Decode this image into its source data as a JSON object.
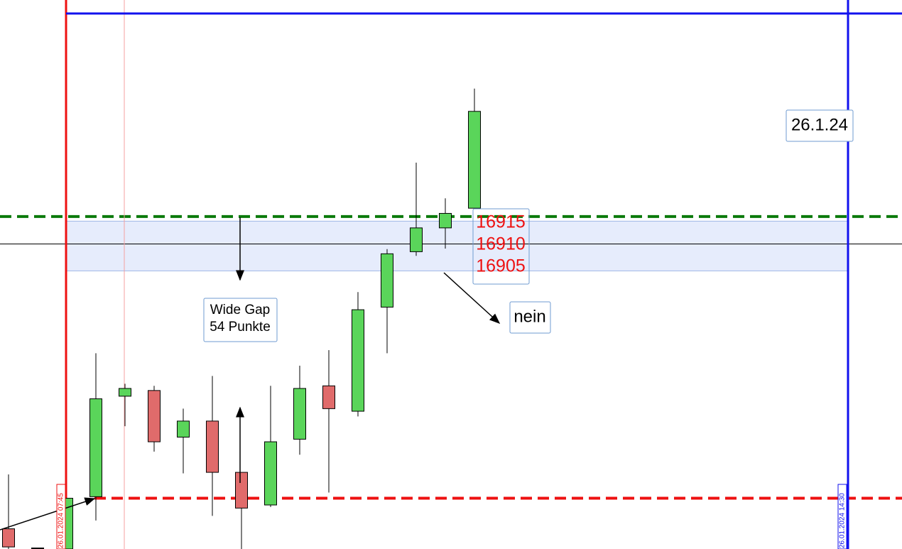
{
  "chart_data": {
    "type": "candlestick",
    "categories": [
      null,
      null,
      null,
      null,
      null,
      null,
      null,
      null,
      null,
      null,
      null,
      null,
      null,
      null,
      null,
      null,
      null
    ],
    "series": [
      {
        "up_color": "#5ad55a",
        "down_color": "#e06b6b",
        "open": [
          16854.9,
          16851.2,
          16851.0,
          16861.1,
          16880.5,
          16881.6,
          16872.6,
          16875.7,
          16865.8,
          16859.5,
          16872.2,
          16882.5,
          16877.6,
          16897.7,
          16908.4,
          16913.0,
          16916.8
        ],
        "high": [
          16865.4,
          16851.2,
          16860.8,
          16888.8,
          16882.9,
          16882.5,
          16878.1,
          16884.4,
          16865.8,
          16882.5,
          16886.4,
          16889.4,
          16900.6,
          16908.9,
          16925.6,
          16918.7,
          16939.9
        ],
        "low": [
          16851.0,
          16851.2,
          16851.0,
          16856.5,
          16874.7,
          16869.8,
          16865.6,
          16857.4,
          16851.0,
          16859.1,
          16869.2,
          16861.9,
          16876.6,
          16888.8,
          16907.6,
          16909.0,
          16916.8
        ],
        "close": [
          16851.4,
          16851.2,
          16860.8,
          16880.0,
          16882.0,
          16871.7,
          16875.7,
          16865.8,
          16858.9,
          16871.7,
          16882.0,
          16878.1,
          16897.2,
          16908.0,
          16913.0,
          16915.8,
          16935.5
        ]
      }
    ],
    "ylim": [
      16851,
      16957
    ],
    "levels": [
      {
        "value": 16915.2,
        "color": "#0a7a0a",
        "style": "dashed"
      },
      {
        "value": 16860.8,
        "color": "#ee1111",
        "style": "dashed"
      },
      {
        "value": 16909.9,
        "color": "#000000",
        "style": "solid"
      }
    ],
    "zone": [
      16904.7,
      16914.3
    ],
    "annotations": [
      "Wide Gap",
      "54 Punkte",
      "16915",
      "16910",
      "16905",
      "nein",
      "26.1.24",
      "26.01.2024 07:45",
      "26.01.2024 14:30"
    ]
  }
}
